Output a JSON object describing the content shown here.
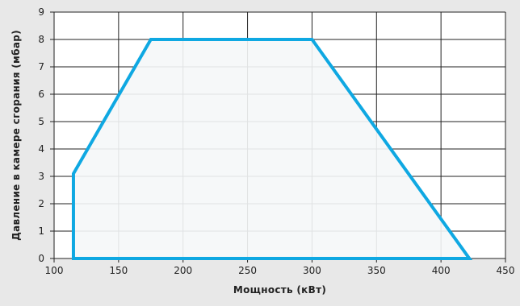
{
  "chart_data": {
    "type": "area",
    "title": "",
    "xlabel": "Мощность (кВт)",
    "ylabel": "Давление в камере сгорания (мбар)",
    "xlim": [
      100,
      450
    ],
    "ylim": [
      0,
      9
    ],
    "x_ticks": [
      100,
      150,
      200,
      250,
      300,
      350,
      400,
      450
    ],
    "y_ticks": [
      0,
      1,
      2,
      3,
      4,
      5,
      6,
      7,
      8,
      9
    ],
    "grid": true,
    "legend": "none",
    "series": [
      {
        "x": [
          115,
          115,
          175,
          300,
          422,
          115
        ],
        "y": [
          0,
          3.1,
          8,
          8,
          0,
          0
        ]
      }
    ],
    "colors": {
      "background": "#e8e8e8",
      "plot_area": "#ffffff",
      "grid": "#222222",
      "series_stroke": "#0fa8e2",
      "series_fill": "#f5f7f8"
    }
  }
}
